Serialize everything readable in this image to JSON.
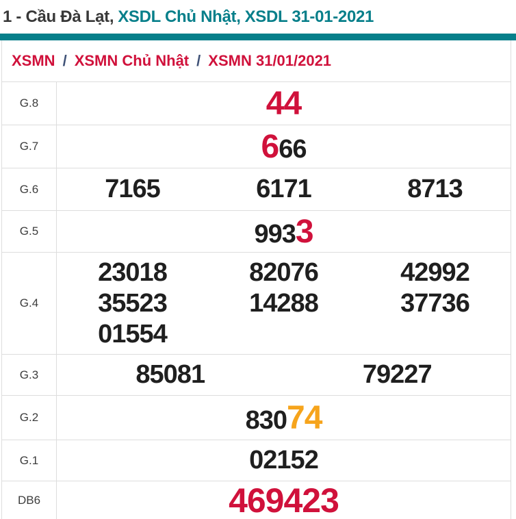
{
  "page": {
    "title": {
      "prefix": "1 - Cầu Đà Lạt,",
      "session": "XSDL Chủ Nhật,",
      "draw": "XSDL 31-01-2021"
    }
  },
  "breadcrumb": {
    "separator": "/",
    "items": [
      {
        "label": "XSMN"
      },
      {
        "label": "XSMN Chủ Nhật"
      },
      {
        "label": "XSMN 31/01/2021"
      }
    ]
  },
  "colors": {
    "teal": "#077f8a",
    "crimson": "#d0113b",
    "orange": "#f6a41c",
    "number": "#1f1f1f",
    "border": "#dddddd"
  },
  "results": {
    "rows": [
      {
        "label": "G.8",
        "cols": 1,
        "lines": [
          [
            [
              {
                "t": "44",
                "s": "r"
              }
            ]
          ]
        ]
      },
      {
        "label": "G.7",
        "cols": 1,
        "lines": [
          [
            [
              {
                "t": "6",
                "s": "r"
              },
              {
                "t": "66",
                "s": "n"
              }
            ]
          ]
        ]
      },
      {
        "label": "G.6",
        "cols": 3,
        "lines": [
          [
            [
              {
                "t": "7165",
                "s": "n"
              }
            ],
            [
              {
                "t": "6171",
                "s": "n"
              }
            ],
            [
              {
                "t": "8713",
                "s": "n"
              }
            ]
          ]
        ]
      },
      {
        "label": "G.5",
        "cols": 1,
        "lines": [
          [
            [
              {
                "t": "993",
                "s": "n"
              },
              {
                "t": "3",
                "s": "r"
              }
            ]
          ]
        ]
      },
      {
        "label": "G.4",
        "cols": 3,
        "lines": [
          [
            [
              {
                "t": "23018",
                "s": "n"
              }
            ],
            [
              {
                "t": "82076",
                "s": "n"
              }
            ],
            [
              {
                "t": "42992",
                "s": "n"
              }
            ]
          ],
          [
            [
              {
                "t": "35523",
                "s": "n"
              }
            ],
            [
              {
                "t": "14288",
                "s": "n"
              }
            ],
            [
              {
                "t": "37736",
                "s": "n"
              }
            ]
          ],
          [
            [
              {
                "t": "01554",
                "s": "n"
              }
            ]
          ]
        ]
      },
      {
        "label": "G.3",
        "cols": 2,
        "lines": [
          [
            [
              {
                "t": "85081",
                "s": "n"
              }
            ],
            [
              {
                "t": "79227",
                "s": "n"
              }
            ]
          ]
        ]
      },
      {
        "label": "G.2",
        "cols": 1,
        "lines": [
          [
            [
              {
                "t": "830",
                "s": "n"
              },
              {
                "t": "74",
                "s": "o"
              }
            ]
          ]
        ]
      },
      {
        "label": "G.1",
        "cols": 1,
        "lines": [
          [
            [
              {
                "t": "02152",
                "s": "n"
              }
            ]
          ]
        ]
      },
      {
        "label": "DB6",
        "cols": 1,
        "lines": [
          [
            [
              {
                "t": "469423",
                "s": "R"
              }
            ]
          ]
        ]
      }
    ]
  }
}
